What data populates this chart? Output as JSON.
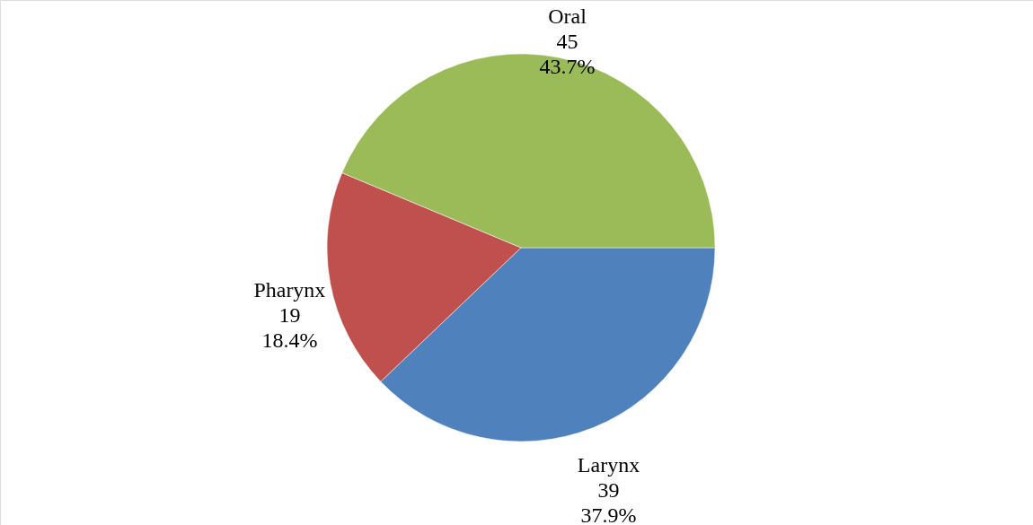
{
  "chart_data": {
    "type": "pie",
    "categories": [
      "Larynx",
      "Pharynx",
      "Oral"
    ],
    "values": [
      39,
      19,
      45
    ],
    "colors": [
      "#4f81bd",
      "#c0504d",
      "#9bbb59"
    ],
    "value_labels": [
      "39\n37.9%",
      "19\n18.4%",
      "45\n43.7%"
    ]
  }
}
